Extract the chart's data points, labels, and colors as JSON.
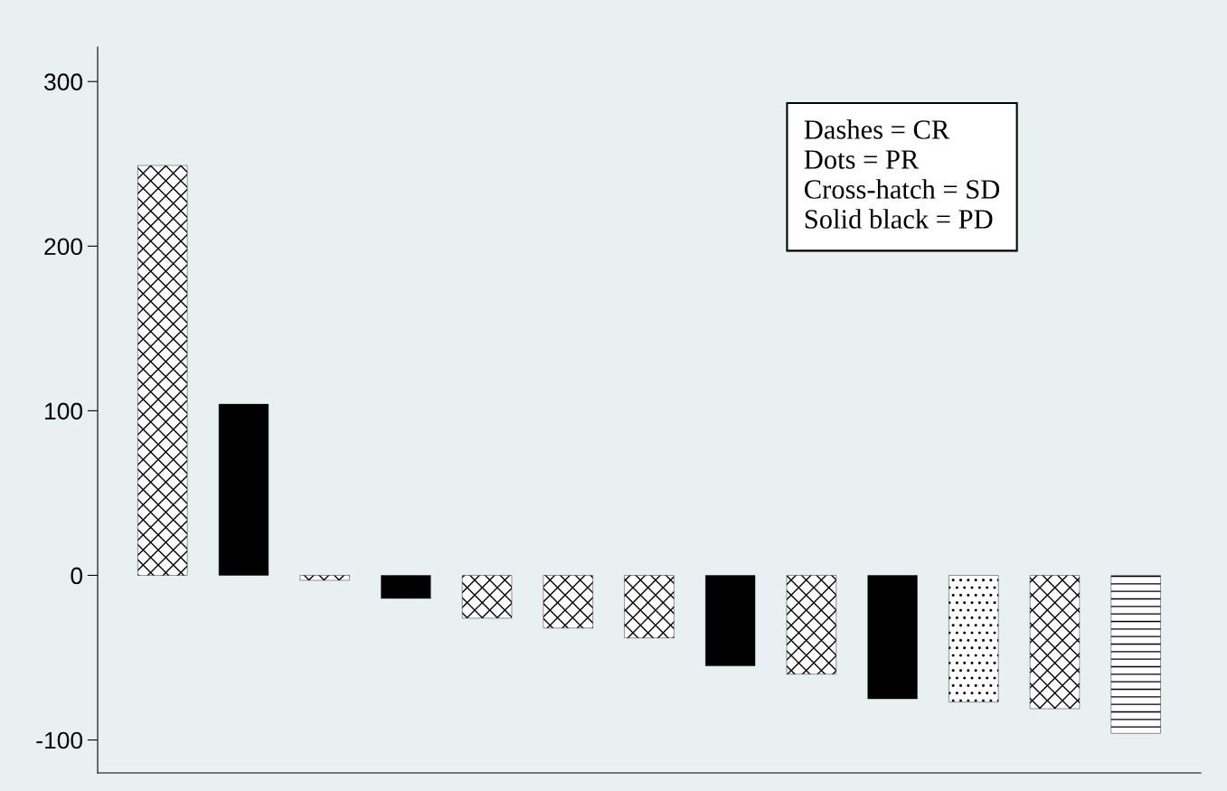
{
  "chart_data": {
    "type": "bar",
    "categories": [
      null,
      null,
      null,
      null,
      null,
      null,
      null,
      null,
      null,
      null,
      null,
      null,
      null
    ],
    "series": [
      {
        "color": "#000000",
        "values": [
          249,
          null,
          -3,
          null,
          -26,
          -32,
          -38,
          null,
          -60,
          null,
          null,
          -81,
          null
        ]
      },
      {
        "color": "#000000",
        "values": [
          null,
          104,
          null,
          -14,
          null,
          null,
          null,
          -55,
          null,
          -75,
          null,
          null,
          null
        ]
      },
      {
        "color": "#000000",
        "values": [
          null,
          null,
          null,
          null,
          null,
          null,
          null,
          null,
          null,
          null,
          -77,
          null,
          null
        ]
      },
      {
        "color": "#000000",
        "values": [
          null,
          null,
          null,
          null,
          null,
          null,
          null,
          null,
          null,
          null,
          null,
          null,
          -96
        ]
      }
    ],
    "ylim": [
      -120,
      321
    ],
    "yticks": [
      -100,
      0,
      100,
      200,
      300
    ],
    "grid": false,
    "legend": false,
    "annotations": [
      "Dashes = CR\nDots = PR\nCross-hatch = SD\nSolid black = PD"
    ]
  }
}
